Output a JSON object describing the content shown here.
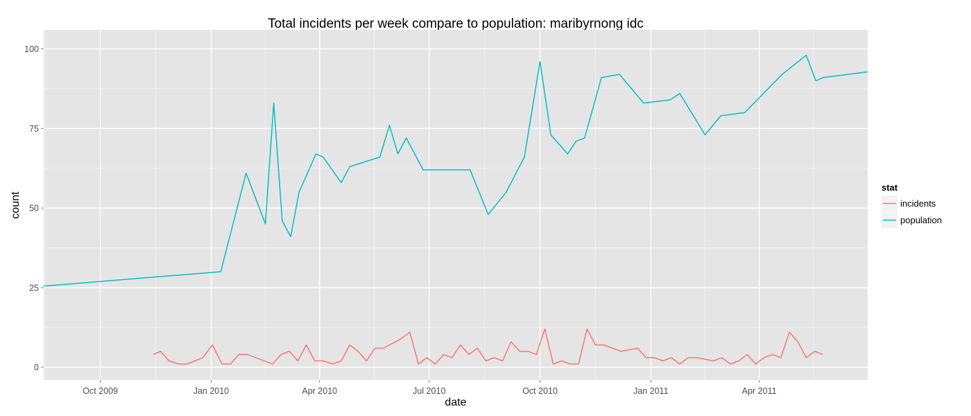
{
  "chart_data": {
    "type": "line",
    "title": "Total incidents per week compare to population: maribyrnong idc",
    "xlabel": "date",
    "ylabel": "count",
    "xlim": [
      "2009-08-15",
      "2011-06-30"
    ],
    "ylim": [
      -4,
      106
    ],
    "x_ticks": [
      {
        "date": "2009-10-01",
        "label": "Oct 2009"
      },
      {
        "date": "2010-01-01",
        "label": "Jan 2010"
      },
      {
        "date": "2010-04-01",
        "label": "Apr 2010"
      },
      {
        "date": "2010-07-01",
        "label": "Jul 2010"
      },
      {
        "date": "2010-10-01",
        "label": "Oct 2010"
      },
      {
        "date": "2011-01-01",
        "label": "Jan 2011"
      },
      {
        "date": "2011-04-01",
        "label": "Apr 2011"
      }
    ],
    "y_ticks": [
      0,
      25,
      50,
      75,
      100
    ],
    "grid": true,
    "background": "#e5e5e5",
    "legend": {
      "title": "stat",
      "position": "right"
    },
    "series": [
      {
        "name": "incidents",
        "color": "#f8766d",
        "points": [
          [
            "2009-11-14",
            4
          ],
          [
            "2009-11-20",
            5
          ],
          [
            "2009-11-27",
            2
          ],
          [
            "2009-12-05",
            1
          ],
          [
            "2009-12-12",
            1
          ],
          [
            "2009-12-25",
            3
          ],
          [
            "2010-01-02",
            7
          ],
          [
            "2010-01-10",
            1
          ],
          [
            "2010-01-17",
            1
          ],
          [
            "2010-01-24",
            4
          ],
          [
            "2010-01-31",
            4
          ],
          [
            "2010-02-21",
            1
          ],
          [
            "2010-02-28",
            4
          ],
          [
            "2010-03-07",
            5
          ],
          [
            "2010-03-14",
            2
          ],
          [
            "2010-03-21",
            7
          ],
          [
            "2010-03-28",
            2
          ],
          [
            "2010-04-04",
            2
          ],
          [
            "2010-04-12",
            1
          ],
          [
            "2010-04-19",
            2
          ],
          [
            "2010-04-26",
            7
          ],
          [
            "2010-05-03",
            5
          ],
          [
            "2010-05-10",
            2
          ],
          [
            "2010-05-17",
            6
          ],
          [
            "2010-05-24",
            6
          ],
          [
            "2010-06-08",
            9
          ],
          [
            "2010-06-15",
            11
          ],
          [
            "2010-06-22",
            1
          ],
          [
            "2010-06-29",
            3
          ],
          [
            "2010-07-06",
            1
          ],
          [
            "2010-07-13",
            4
          ],
          [
            "2010-07-20",
            3
          ],
          [
            "2010-07-27",
            7
          ],
          [
            "2010-08-03",
            4
          ],
          [
            "2010-08-10",
            6
          ],
          [
            "2010-08-17",
            2
          ],
          [
            "2010-08-24",
            3
          ],
          [
            "2010-08-31",
            2
          ],
          [
            "2010-09-07",
            8
          ],
          [
            "2010-09-14",
            5
          ],
          [
            "2010-09-21",
            5
          ],
          [
            "2010-09-28",
            4
          ],
          [
            "2010-10-05",
            12
          ],
          [
            "2010-10-12",
            1
          ],
          [
            "2010-10-19",
            2
          ],
          [
            "2010-10-26",
            1
          ],
          [
            "2010-11-02",
            1
          ],
          [
            "2010-11-09",
            12
          ],
          [
            "2010-11-16",
            7
          ],
          [
            "2010-11-23",
            7
          ],
          [
            "2010-12-07",
            5
          ],
          [
            "2010-12-21",
            6
          ],
          [
            "2010-12-28",
            3
          ],
          [
            "2011-01-04",
            3
          ],
          [
            "2011-01-11",
            2
          ],
          [
            "2011-01-18",
            3
          ],
          [
            "2011-01-25",
            1
          ],
          [
            "2011-02-01",
            3
          ],
          [
            "2011-02-08",
            3
          ],
          [
            "2011-02-22",
            2
          ],
          [
            "2011-03-01",
            3
          ],
          [
            "2011-03-08",
            1
          ],
          [
            "2011-03-15",
            2
          ],
          [
            "2011-03-22",
            4
          ],
          [
            "2011-03-29",
            1
          ],
          [
            "2011-04-05",
            3
          ],
          [
            "2011-04-12",
            4
          ],
          [
            "2011-04-19",
            3
          ],
          [
            "2011-04-26",
            11
          ],
          [
            "2011-05-03",
            8
          ],
          [
            "2011-05-10",
            3
          ],
          [
            "2011-05-17",
            5
          ],
          [
            "2011-05-24",
            4
          ]
        ]
      },
      {
        "name": "population",
        "color": "#00bfc4",
        "points": [
          [
            "2009-08-15",
            25.5
          ],
          [
            "2010-01-09",
            30
          ],
          [
            "2010-01-30",
            61
          ],
          [
            "2010-02-15",
            45
          ],
          [
            "2010-02-22",
            83
          ],
          [
            "2010-03-01",
            46
          ],
          [
            "2010-03-08",
            41
          ],
          [
            "2010-03-15",
            55
          ],
          [
            "2010-03-29",
            67
          ],
          [
            "2010-04-04",
            66
          ],
          [
            "2010-04-19",
            58
          ],
          [
            "2010-04-26",
            63
          ],
          [
            "2010-05-21",
            66
          ],
          [
            "2010-05-29",
            76
          ],
          [
            "2010-06-05",
            67
          ],
          [
            "2010-06-12",
            72
          ],
          [
            "2010-06-26",
            62
          ],
          [
            "2010-08-04",
            62
          ],
          [
            "2010-08-19",
            48
          ],
          [
            "2010-09-03",
            55
          ],
          [
            "2010-09-18",
            66
          ],
          [
            "2010-10-01",
            96
          ],
          [
            "2010-10-10",
            73
          ],
          [
            "2010-10-24",
            67
          ],
          [
            "2010-10-31",
            71
          ],
          [
            "2010-11-07",
            72
          ],
          [
            "2010-11-21",
            91
          ],
          [
            "2010-12-06",
            92
          ],
          [
            "2010-12-26",
            83
          ],
          [
            "2011-01-17",
            84
          ],
          [
            "2011-01-25",
            86
          ],
          [
            "2011-02-15",
            73
          ],
          [
            "2011-02-28",
            79
          ],
          [
            "2011-03-20",
            80
          ],
          [
            "2011-04-20",
            92
          ],
          [
            "2011-05-10",
            98
          ],
          [
            "2011-05-18",
            90
          ],
          [
            "2011-05-24",
            91
          ],
          [
            "2011-06-30",
            92.8
          ]
        ]
      }
    ]
  }
}
